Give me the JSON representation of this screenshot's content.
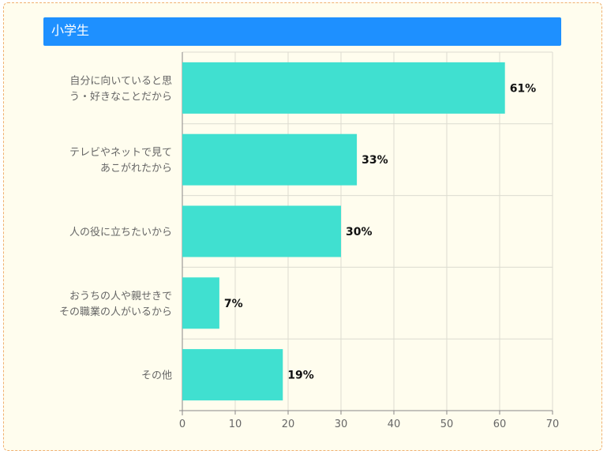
{
  "header": {
    "title": "小学生"
  },
  "colors": {
    "bar": "#40e0d0",
    "header": "#1e90ff",
    "background": "#fffdee",
    "border": "#f0b070"
  },
  "chart_data": {
    "type": "bar",
    "orientation": "horizontal",
    "categories": [
      [
        "自分に向いていると思",
        "う・好きなことだから"
      ],
      [
        "テレビやネットで見て",
        "あこがれたから"
      ],
      [
        "人の役に立ちたいから"
      ],
      [
        "おうちの人や親せきで",
        "その職業の人がいるから"
      ],
      [
        "その他"
      ]
    ],
    "values": [
      61,
      33,
      30,
      7,
      19
    ],
    "value_labels": [
      "61%",
      "33%",
      "30%",
      "7%",
      "19%"
    ],
    "xlim": [
      0,
      70
    ],
    "xticks": [
      0,
      10,
      20,
      30,
      40,
      50,
      60,
      70
    ],
    "grid": true,
    "legend": "none"
  }
}
